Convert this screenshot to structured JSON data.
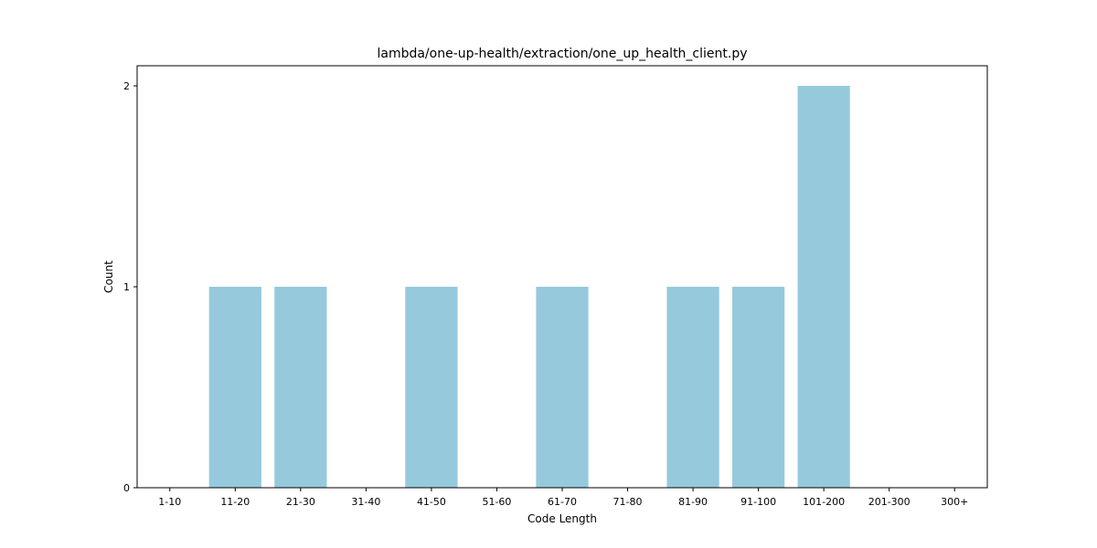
{
  "chart_data": {
    "type": "bar",
    "title": "lambda/one-up-health/extraction/one_up_health_client.py",
    "xlabel": "Code Length",
    "ylabel": "Count",
    "categories": [
      "1-10",
      "11-20",
      "21-30",
      "31-40",
      "41-50",
      "51-60",
      "61-70",
      "71-80",
      "81-90",
      "91-100",
      "101-200",
      "201-300",
      "300+"
    ],
    "values": [
      0,
      1,
      1,
      0,
      1,
      0,
      1,
      0,
      1,
      1,
      2,
      0,
      0
    ],
    "yticks": [
      "0",
      "1",
      "2"
    ],
    "ylim": [
      0,
      2.1
    ],
    "grid": false,
    "legend": "none",
    "bar_color": "#96c9dc",
    "axis_color": "#000000"
  }
}
